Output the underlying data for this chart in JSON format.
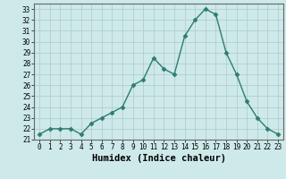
{
  "x": [
    0,
    1,
    2,
    3,
    4,
    5,
    6,
    7,
    8,
    9,
    10,
    11,
    12,
    13,
    14,
    15,
    16,
    17,
    18,
    19,
    20,
    21,
    22,
    23
  ],
  "y": [
    21.5,
    22.0,
    22.0,
    22.0,
    21.5,
    22.5,
    23.0,
    23.5,
    24.0,
    26.0,
    26.5,
    28.5,
    27.5,
    27.0,
    30.5,
    32.0,
    33.0,
    32.5,
    29.0,
    27.0,
    24.5,
    23.0,
    22.0,
    21.5
  ],
  "line_color": "#2e7d6e",
  "marker": "D",
  "marker_size": 2.5,
  "line_width": 1.0,
  "xlabel": "Humidex (Indice chaleur)",
  "ylim": [
    21,
    33.5
  ],
  "yticks": [
    21,
    22,
    23,
    24,
    25,
    26,
    27,
    28,
    29,
    30,
    31,
    32,
    33
  ],
  "xticks": [
    0,
    1,
    2,
    3,
    4,
    5,
    6,
    7,
    8,
    9,
    10,
    11,
    12,
    13,
    14,
    15,
    16,
    17,
    18,
    19,
    20,
    21,
    22,
    23
  ],
  "bg_color": "#cde9e9",
  "grid_color": "#b0c8c8",
  "tick_label_fontsize": 5.5,
  "xlabel_fontsize": 7.5
}
